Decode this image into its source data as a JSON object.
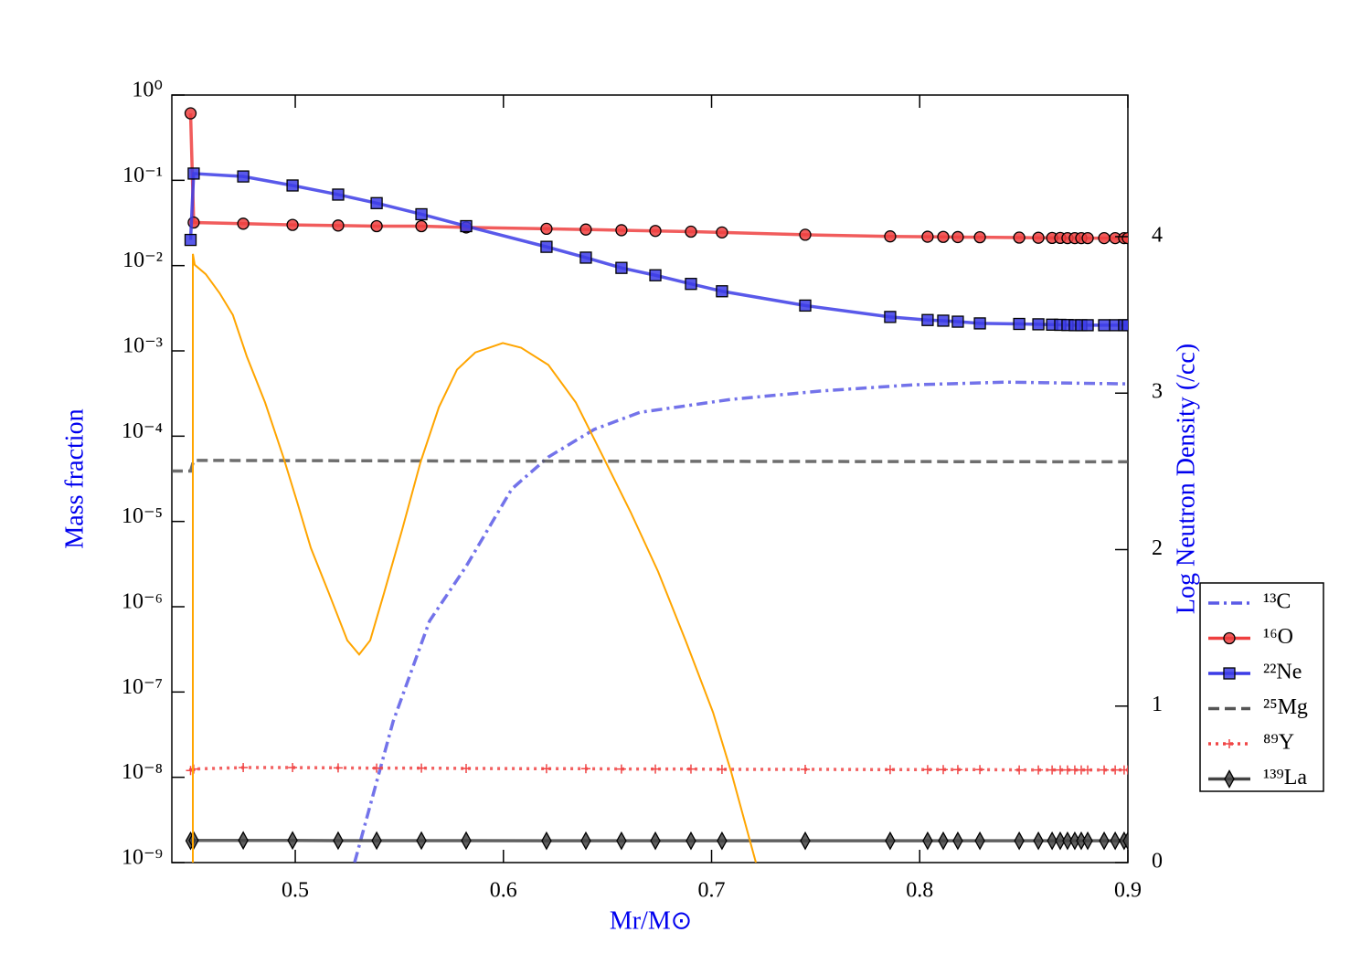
{
  "chart_data": {
    "type": "line",
    "x_label": "Mr/M⊙",
    "y_label": "Mass fraction",
    "y2_label": "Log Neutron Density (/cc)",
    "xlim": [
      0.4407,
      0.9
    ],
    "xticks": [
      0.5,
      0.6,
      0.7,
      0.8,
      0.9
    ],
    "ylim": [
      1e-09,
      1
    ],
    "ylog": true,
    "yticks": [
      {
        "value": 1e-09,
        "label": "10⁻⁹"
      },
      {
        "value": 1e-08,
        "label": "10⁻⁸"
      },
      {
        "value": 1e-07,
        "label": "10⁻⁷"
      },
      {
        "value": 1e-06,
        "label": "10⁻⁶"
      },
      {
        "value": 1e-05,
        "label": "10⁻⁵"
      },
      {
        "value": 0.0001,
        "label": "10⁻⁴"
      },
      {
        "value": 0.001,
        "label": "10⁻³"
      },
      {
        "value": 0.01,
        "label": "10⁻²"
      },
      {
        "value": 0.1,
        "label": "10⁻¹"
      },
      {
        "value": 1,
        "label": "10⁰"
      }
    ],
    "y2lim": [
      0,
      4.905
    ],
    "y2ticks": [
      0,
      1,
      2,
      3,
      4
    ],
    "legend": "right",
    "x": [
      0.4497,
      0.4512,
      0.475,
      0.4987,
      0.5206,
      0.5391,
      0.5606,
      0.5821,
      0.6207,
      0.6396,
      0.6567,
      0.673,
      0.6901,
      0.705,
      0.745,
      0.7858,
      0.8038,
      0.8113,
      0.8183,
      0.8289,
      0.8478,
      0.857,
      0.8636,
      0.8675,
      0.871,
      0.8745,
      0.8776,
      0.8807,
      0.8886,
      0.8939,
      0.8982,
      0.9
    ],
    "series": [
      {
        "name": "¹³C",
        "color": "#5a5ae6",
        "linestyle": "dashdot",
        "marker": "none",
        "x": [
          0.5285,
          0.547,
          0.5645,
          0.582,
          0.604,
          0.6216,
          0.6436,
          0.6655,
          0.7094,
          0.7534,
          0.797,
          0.8412,
          0.9
        ],
        "values": [
          1e-09,
          4.5e-08,
          6.8e-07,
          2.95e-06,
          2.4e-05,
          5.7e-05,
          0.00012,
          0.00019,
          0.00027,
          0.00034,
          0.0004,
          0.00043,
          0.00041
        ]
      },
      {
        "name": "¹⁶O",
        "color": "#ef4040",
        "linestyle": "solid",
        "marker": "circle",
        "values": [
          0.61,
          0.032,
          0.031,
          0.03,
          0.0295,
          0.029,
          0.029,
          0.028,
          0.027,
          0.0265,
          0.026,
          0.0255,
          0.025,
          0.0245,
          0.023,
          0.022,
          0.0218,
          0.0217,
          0.0216,
          0.0215,
          0.0213,
          0.0212,
          0.0211,
          0.0211,
          0.021,
          0.021,
          0.021,
          0.021,
          0.021,
          0.021,
          0.021,
          0.021
        ]
      },
      {
        "name": "²²Ne",
        "color": "#3c3ce6",
        "linestyle": "solid",
        "marker": "square",
        "values": [
          0.02,
          0.12,
          0.111,
          0.087,
          0.068,
          0.054,
          0.04,
          0.029,
          0.0166,
          0.0124,
          0.0094,
          0.0077,
          0.0061,
          0.005,
          0.0034,
          0.0025,
          0.0023,
          0.00226,
          0.0022,
          0.0021,
          0.00207,
          0.00205,
          0.00203,
          0.00202,
          0.00201,
          0.002,
          0.002,
          0.002,
          0.002,
          0.002,
          0.002,
          0.002
        ]
      },
      {
        "name": "²⁵Mg",
        "color": "#555555",
        "linestyle": "dashed",
        "marker": "none",
        "x": [
          0.4407,
          0.4497,
          0.4512,
          0.6,
          0.9
        ],
        "values": [
          3.9e-05,
          3.9e-05,
          5.2e-05,
          5.1e-05,
          5e-05
        ]
      },
      {
        "name": "⁸⁹Y",
        "color": "#f04545",
        "linestyle": "dotted",
        "marker": "plus",
        "values": [
          1.2e-08,
          1.25e-08,
          1.3e-08,
          1.3e-08,
          1.29e-08,
          1.28e-08,
          1.28e-08,
          1.27e-08,
          1.26e-08,
          1.26e-08,
          1.25e-08,
          1.25e-08,
          1.25e-08,
          1.24e-08,
          1.24e-08,
          1.23e-08,
          1.23e-08,
          1.23e-08,
          1.23e-08,
          1.23e-08,
          1.22e-08,
          1.22e-08,
          1.22e-08,
          1.22e-08,
          1.22e-08,
          1.22e-08,
          1.22e-08,
          1.22e-08,
          1.22e-08,
          1.22e-08,
          1.22e-08,
          1.22e-08
        ]
      },
      {
        "name": "¹³⁹La",
        "color": "#444444",
        "linestyle": "solid",
        "marker": "diamond",
        "values": [
          1.8e-09,
          1.82e-09,
          1.82e-09,
          1.82e-09,
          1.81e-09,
          1.81e-09,
          1.81e-09,
          1.81e-09,
          1.8e-09,
          1.8e-09,
          1.8e-09,
          1.8e-09,
          1.8e-09,
          1.8e-09,
          1.8e-09,
          1.8e-09,
          1.8e-09,
          1.8e-09,
          1.8e-09,
          1.8e-09,
          1.8e-09,
          1.8e-09,
          1.8e-09,
          1.8e-09,
          1.8e-09,
          1.8e-09,
          1.8e-09,
          1.8e-09,
          1.8e-09,
          1.8e-09,
          1.8e-09,
          1.8e-09
        ]
      },
      {
        "color": "#ffa500",
        "linestyle": "solid",
        "marker": "none",
        "axis": "y2",
        "x": [
          0.4508,
          0.4508,
          0.4517,
          0.457,
          0.4636,
          0.47,
          0.4767,
          0.4855,
          0.4943,
          0.501,
          0.5075,
          0.5162,
          0.525,
          0.5307,
          0.536,
          0.5426,
          0.5514,
          0.5602,
          0.569,
          0.5777,
          0.5865,
          0.5997,
          0.6085,
          0.6216,
          0.6348,
          0.648,
          0.6611,
          0.6743,
          0.6875,
          0.7007,
          0.7094,
          0.7213
        ],
        "values": [
          0,
          3.89,
          3.82,
          3.76,
          3.64,
          3.5,
          3.235,
          2.94,
          2.59,
          2.3,
          2.01,
          1.72,
          1.42,
          1.33,
          1.42,
          1.72,
          2.13,
          2.56,
          2.91,
          3.15,
          3.26,
          3.32,
          3.29,
          3.18,
          2.94,
          2.59,
          2.24,
          1.86,
          1.42,
          0.96,
          0.58,
          0
        ]
      }
    ]
  }
}
